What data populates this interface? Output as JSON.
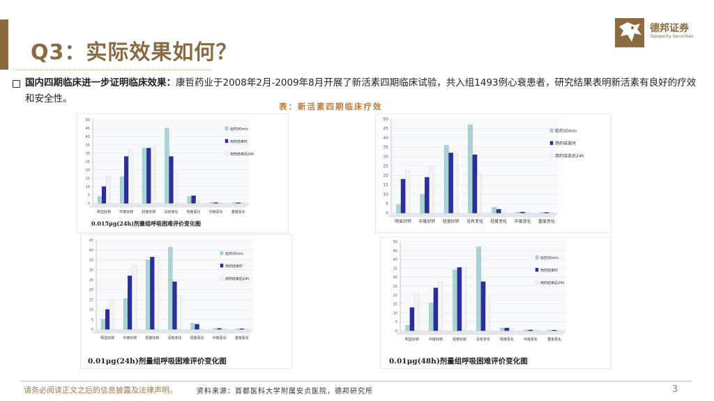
{
  "header": {
    "title": "Q3：实际效果如何？",
    "logo_cn": "德邦证券",
    "logo_en": "Topsperity Securities"
  },
  "intro": {
    "bold": "国内四期临床进一步证明临床效果：",
    "text": "康哲药业于2008年2月-2009年8月开展了新活素四期临床试验，共入组1493例心衰患者，研究结果表明新活素有良好的疗效和安全性。"
  },
  "table_caption": "表：新活素四期临床疗效",
  "colors": {
    "brand": "#8a6a3e",
    "series": [
      "#a9d4d6",
      "#2b2f9b",
      "#f4f4f4"
    ]
  },
  "chart_data": [
    {
      "type": "bar",
      "title": "0.015μg(24h)剂量组呼吸困难评价变化图",
      "categories": [
        "明显好转",
        "中度好转",
        "轻度好转",
        "没有变化",
        "轻度恶化",
        "中度恶化",
        "重度恶化"
      ],
      "ylim": [
        0,
        50
      ],
      "yticks": [
        0,
        5,
        10,
        15,
        20,
        25,
        30,
        35,
        40,
        45,
        50
      ],
      "legend_position": "right",
      "series": [
        {
          "name": "给药30min",
          "values": [
            4,
            16,
            33,
            45,
            4,
            0.4,
            0.3
          ]
        },
        {
          "name": "用药结束时",
          "values": [
            10,
            28,
            33,
            28,
            4.5,
            0.4,
            0.3
          ]
        },
        {
          "name": "用药结束后24h",
          "values": [
            16,
            32,
            33.5,
            19,
            1.5,
            0.4,
            0.3
          ]
        }
      ]
    },
    {
      "type": "bar",
      "title": "",
      "categories": [
        "明显好转",
        "中度好转",
        "轻度好转",
        "没有变化",
        "轻度恶化",
        "中度恶化",
        "重度恶化"
      ],
      "ylim": [
        0,
        50
      ],
      "yticks": [
        0,
        5,
        10,
        15,
        20,
        25,
        30,
        35,
        40,
        45,
        50
      ],
      "legend_position": "right",
      "series": [
        {
          "name": "给药30min",
          "values": [
            4.5,
            10,
            36,
            47,
            3,
            0.4,
            0.3
          ]
        },
        {
          "name": "用药结束时",
          "values": [
            18,
            19,
            32,
            31,
            2,
            0.5,
            0.3
          ]
        },
        {
          "name": "用药结束后24h",
          "values": [
            22.5,
            25,
            31.5,
            20.5,
            1.5,
            0.3,
            0.3
          ]
        }
      ]
    },
    {
      "type": "bar",
      "title": "0.01μg(24h)剂量组呼吸困难评价变化图",
      "categories": [
        "明显好转",
        "中度好转",
        "轻度好转",
        "没有变化",
        "轻度恶化",
        "中度恶化",
        "重度恶化"
      ],
      "ylim": [
        0,
        45
      ],
      "yticks": [
        0,
        5,
        10,
        15,
        20,
        25,
        30,
        35,
        40,
        45
      ],
      "legend_position": "right",
      "series": [
        {
          "name": "给药30min",
          "values": [
            5,
            15.5,
            35,
            41.5,
            3,
            0.4,
            0.3
          ]
        },
        {
          "name": "用药结束时",
          "values": [
            10,
            27,
            36.5,
            24,
            2.5,
            0.4,
            0.3
          ]
        },
        {
          "name": "用药结束后24h",
          "values": [
            15,
            32,
            37,
            17,
            0.8,
            0.3,
            0.3
          ]
        }
      ]
    },
    {
      "type": "bar",
      "title": "0.01μg(48h)剂量组呼吸困难评价变化图",
      "categories": [
        "明显好转",
        "中度好转",
        "轻度好转",
        "没有变化",
        "轻度恶化",
        "中度恶化",
        "重度恶化"
      ],
      "ylim": [
        0,
        50
      ],
      "yticks": [
        0,
        5,
        10,
        15,
        20,
        25,
        30,
        35,
        40,
        45,
        50
      ],
      "legend_position": "right",
      "series": [
        {
          "name": "给药30min",
          "values": [
            3,
            15.5,
            34,
            47,
            1.5,
            0.4,
            0.3
          ]
        },
        {
          "name": "用药结束时",
          "values": [
            13,
            24,
            35.5,
            27.5,
            1.5,
            0.4,
            0.3
          ]
        },
        {
          "name": "用药结束后24h",
          "values": [
            20.5,
            27.5,
            35.5,
            18.5,
            1.2,
            0.3,
            0.3
          ]
        }
      ]
    }
  ],
  "footer": {
    "disclaimer": "请务必阅读正文之后的信息披露及法律声明。",
    "source": "资料来源：首都医科大学附属安贞医院，德邦研究所",
    "page": "3"
  }
}
